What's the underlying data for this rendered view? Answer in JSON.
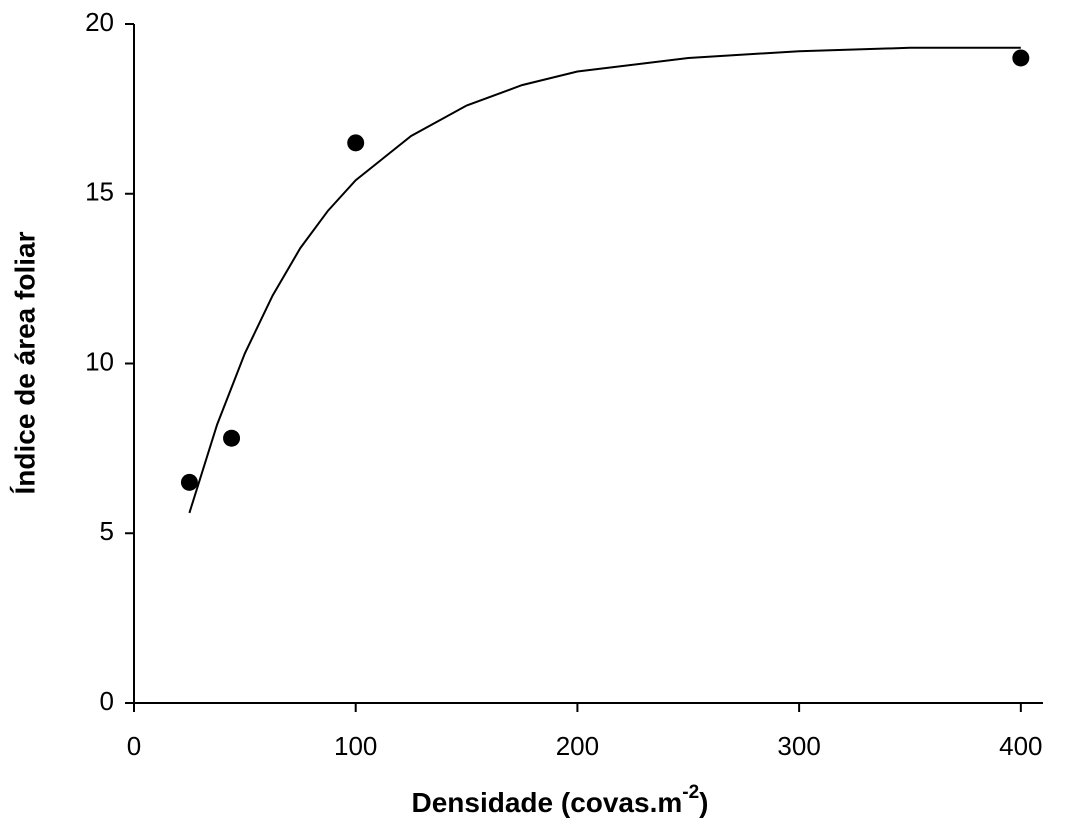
{
  "chart_data": {
    "type": "scatter",
    "x_label": {
      "text": "Densidade (covas.m",
      "superscript": "-2",
      "suffix": ")"
    },
    "y_label": "Índice de área foliar",
    "points": {
      "x": [
        25,
        44,
        100,
        400
      ],
      "values": [
        6.5,
        7.8,
        16.5,
        19.0
      ],
      "color": "#000000"
    },
    "curve": {
      "x": [
        25,
        37.5,
        50,
        62.5,
        75,
        87.5,
        100,
        125,
        150,
        175,
        200,
        250,
        300,
        350,
        400
      ],
      "values": [
        5.6,
        8.2,
        10.3,
        12.0,
        13.4,
        14.5,
        15.4,
        16.7,
        17.6,
        18.2,
        18.6,
        19.0,
        19.2,
        19.3,
        19.3
      ],
      "color": "#000000"
    },
    "xlim": [
      0,
      410
    ],
    "ylim": [
      0,
      20
    ],
    "xticks": [
      0,
      100,
      200,
      300,
      400
    ],
    "yticks": [
      0,
      5,
      10,
      15,
      20
    ],
    "grid": false
  }
}
